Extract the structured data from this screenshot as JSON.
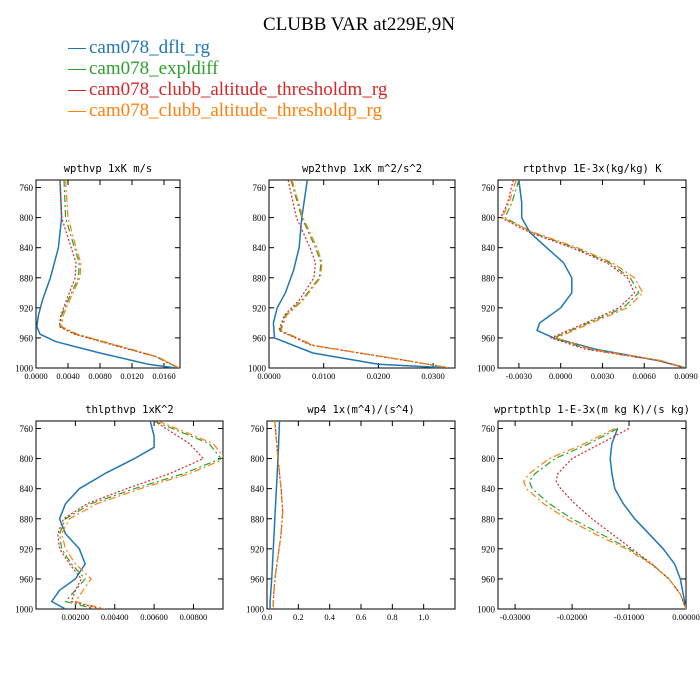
{
  "title": "CLUBB VAR at229E,9N",
  "colors": {
    "dflt": "#1f77b4",
    "expldiff": "#2ca02c",
    "thresholdm": "#d62728",
    "thresholdp": "#ff7f0e"
  },
  "legend": [
    {
      "label": "cam078_dflt_rg",
      "color": "#1f77b4",
      "style": "solid"
    },
    {
      "label": "cam078_expldiff",
      "color": "#2ca02c",
      "style": "dashdot"
    },
    {
      "label": "cam078_clubb_altitude_thresholdm_rg",
      "color": "#d62728",
      "style": "dotted"
    },
    {
      "label": "cam078_clubb_altitude_thresholdp_rg",
      "color": "#ff7f0e",
      "style": "dashdot"
    }
  ],
  "chart_data": [
    {
      "type": "line",
      "title": "wpthvp  1xK m/s",
      "xlim": [
        0.0,
        0.018
      ],
      "xticks": [
        0.0,
        0.004,
        0.008,
        0.012,
        0.016
      ],
      "xtick_labels": [
        "0.0000",
        "0.0040",
        "0.0080",
        "0.0120",
        "0.0160"
      ],
      "ylim": [
        1000,
        750
      ],
      "yticks": [
        760,
        800,
        840,
        880,
        920,
        960,
        1000
      ],
      "ytick_labels": [
        "760",
        "800",
        "840",
        "880",
        "920",
        "960",
        "1000"
      ],
      "series": [
        {
          "name": "cam078_dflt_rg",
          "y": [
            750,
            800,
            840,
            880,
            910,
            930,
            945,
            955,
            965,
            980,
            995,
            1000
          ],
          "x": [
            0.003,
            0.0032,
            0.0028,
            0.0018,
            0.0008,
            0.0003,
            0.0001,
            0.0005,
            0.0025,
            0.008,
            0.014,
            0.0175
          ]
        },
        {
          "name": "cam078_expldiff",
          "y": [
            750,
            800,
            840,
            860,
            880,
            910,
            930,
            945,
            955,
            970,
            985,
            1000
          ],
          "x": [
            0.0035,
            0.0037,
            0.0048,
            0.0054,
            0.0053,
            0.004,
            0.0032,
            0.003,
            0.005,
            0.01,
            0.015,
            0.0178
          ]
        },
        {
          "name": "cam078_clubb_altitude_thresholdm_rg",
          "y": [
            750,
            800,
            840,
            860,
            880,
            910,
            930,
            945,
            955,
            970,
            985,
            1000
          ],
          "x": [
            0.003,
            0.0032,
            0.0044,
            0.005,
            0.0049,
            0.0038,
            0.0031,
            0.0029,
            0.0048,
            0.0098,
            0.015,
            0.0178
          ]
        },
        {
          "name": "cam078_clubb_altitude_thresholdp_rg",
          "y": [
            750,
            800,
            840,
            860,
            880,
            910,
            930,
            945,
            955,
            970,
            985,
            1000
          ],
          "x": [
            0.0037,
            0.004,
            0.005,
            0.0056,
            0.0055,
            0.0042,
            0.0034,
            0.0032,
            0.0052,
            0.0102,
            0.0152,
            0.0179
          ]
        }
      ]
    },
    {
      "type": "line",
      "title": "wp2thvp  1xK m^2/s^2",
      "xlim": [
        0.0,
        0.034
      ],
      "xticks": [
        0.0,
        0.01,
        0.02,
        0.03
      ],
      "xtick_labels": [
        "0.0000",
        "0.0100",
        "0.0200",
        "0.0300"
      ],
      "ylim": [
        1000,
        750
      ],
      "yticks": [
        760,
        800,
        840,
        880,
        920,
        960,
        1000
      ],
      "ytick_labels": [
        "760",
        "800",
        "840",
        "880",
        "920",
        "960",
        "1000"
      ],
      "series": [
        {
          "name": "cam078_dflt_rg",
          "y": [
            750,
            800,
            840,
            870,
            900,
            920,
            940,
            960,
            980,
            995,
            1000
          ],
          "x": [
            0.007,
            0.006,
            0.0055,
            0.0045,
            0.003,
            0.0015,
            0.0008,
            0.001,
            0.008,
            0.02,
            0.033
          ]
        },
        {
          "name": "cam078_expldiff",
          "y": [
            750,
            800,
            840,
            860,
            880,
            910,
            930,
            950,
            970,
            990,
            1000
          ],
          "x": [
            0.004,
            0.006,
            0.0085,
            0.0095,
            0.0092,
            0.006,
            0.003,
            0.002,
            0.008,
            0.025,
            0.033
          ]
        },
        {
          "name": "cam078_clubb_altitude_thresholdm_rg",
          "y": [
            750,
            800,
            840,
            860,
            880,
            910,
            930,
            950,
            970,
            990,
            1000
          ],
          "x": [
            0.0035,
            0.005,
            0.0075,
            0.0085,
            0.0082,
            0.0055,
            0.0028,
            0.0018,
            0.0078,
            0.025,
            0.033
          ]
        },
        {
          "name": "cam078_clubb_altitude_thresholdp_rg",
          "y": [
            750,
            800,
            840,
            860,
            880,
            910,
            930,
            950,
            970,
            990,
            1000
          ],
          "x": [
            0.0042,
            0.0062,
            0.0088,
            0.0097,
            0.0094,
            0.0062,
            0.0032,
            0.0022,
            0.0082,
            0.0252,
            0.033
          ]
        }
      ]
    },
    {
      "type": "line",
      "title": "rtpthvp  1E-3x(kg/kg) K",
      "xlim": [
        -0.0045,
        0.009
      ],
      "xticks": [
        -0.003,
        0.0,
        0.003,
        0.006,
        0.009
      ],
      "xtick_labels": [
        "-0.0030",
        "0.0000",
        "0.0030",
        "0.0060",
        "0.0090"
      ],
      "ylim": [
        1000,
        750
      ],
      "yticks": [
        760,
        800,
        840,
        880,
        920,
        960,
        1000
      ],
      "ytick_labels": [
        "760",
        "800",
        "840",
        "880",
        "920",
        "960",
        "1000"
      ],
      "series": [
        {
          "name": "cam078_dflt_rg",
          "y": [
            750,
            780,
            800,
            820,
            840,
            860,
            880,
            900,
            920,
            940,
            950,
            960,
            975,
            990,
            1000
          ],
          "x": [
            -0.003,
            -0.0028,
            -0.0028,
            -0.0022,
            -0.001,
            0.0002,
            0.0008,
            0.0008,
            0.0,
            -0.0015,
            -0.0017,
            -0.0005,
            0.0025,
            0.007,
            0.009
          ]
        },
        {
          "name": "cam078_expldiff",
          "y": [
            750,
            780,
            800,
            820,
            840,
            860,
            880,
            900,
            920,
            940,
            960,
            975,
            990,
            1000
          ],
          "x": [
            -0.003,
            -0.0035,
            -0.004,
            -0.002,
            0.001,
            0.0035,
            0.005,
            0.0056,
            0.0045,
            0.002,
            -0.0005,
            0.002,
            0.007,
            0.009
          ]
        },
        {
          "name": "cam078_clubb_altitude_thresholdm_rg",
          "y": [
            750,
            780,
            800,
            820,
            840,
            860,
            880,
            900,
            920,
            940,
            960,
            975,
            990,
            1000
          ],
          "x": [
            -0.0034,
            -0.0038,
            -0.0043,
            -0.0022,
            0.0008,
            0.0033,
            0.0048,
            0.0053,
            0.0042,
            0.0018,
            -0.0007,
            0.0018,
            0.007,
            0.009
          ]
        },
        {
          "name": "cam078_clubb_altitude_thresholdp_rg",
          "y": [
            750,
            780,
            800,
            820,
            840,
            860,
            880,
            900,
            920,
            940,
            960,
            975,
            990,
            1000
          ],
          "x": [
            -0.0032,
            -0.0037,
            -0.0042,
            -0.0019,
            0.0012,
            0.0037,
            0.0053,
            0.0059,
            0.0048,
            0.0022,
            -0.0003,
            0.0022,
            0.0072,
            0.009
          ]
        }
      ]
    },
    {
      "type": "line",
      "title": "thlpthvp  1xK^2",
      "xlim": [
        0.0,
        0.0095
      ],
      "xticks": [
        0.002,
        0.004,
        0.006,
        0.008
      ],
      "xtick_labels": [
        "0.00200",
        "0.00400",
        "0.00600",
        "0.00800"
      ],
      "ylim": [
        1000,
        750
      ],
      "yticks": [
        760,
        800,
        840,
        880,
        920,
        960,
        1000
      ],
      "ytick_labels": [
        "760",
        "800",
        "840",
        "880",
        "920",
        "960",
        "1000"
      ],
      "series": [
        {
          "name": "cam078_dflt_rg",
          "y": [
            750,
            770,
            785,
            800,
            820,
            840,
            860,
            880,
            900,
            920,
            940,
            960,
            975,
            990,
            1000
          ],
          "x": [
            0.0058,
            0.006,
            0.006,
            0.005,
            0.0035,
            0.0022,
            0.0015,
            0.0012,
            0.0015,
            0.0022,
            0.0025,
            0.002,
            0.0012,
            0.0008,
            0.0015
          ]
        },
        {
          "name": "cam078_expldiff",
          "y": [
            750,
            780,
            800,
            820,
            840,
            860,
            880,
            900,
            920,
            940,
            960,
            975,
            990,
            1000
          ],
          "x": [
            0.006,
            0.0088,
            0.0094,
            0.0075,
            0.005,
            0.0028,
            0.0015,
            0.0012,
            0.0013,
            0.0018,
            0.0025,
            0.002,
            0.0015,
            0.003
          ]
        },
        {
          "name": "cam078_clubb_altitude_thresholdm_rg",
          "y": [
            750,
            780,
            800,
            820,
            840,
            860,
            880,
            900,
            920,
            940,
            960,
            975,
            990,
            1000
          ],
          "x": [
            0.006,
            0.0078,
            0.0085,
            0.0068,
            0.0046,
            0.0026,
            0.0014,
            0.0011,
            0.0012,
            0.0017,
            0.0023,
            0.002,
            0.0018,
            0.0033
          ]
        },
        {
          "name": "cam078_clubb_altitude_thresholdp_rg",
          "y": [
            750,
            780,
            800,
            820,
            840,
            860,
            880,
            900,
            920,
            940,
            960,
            975,
            990,
            1000
          ],
          "x": [
            0.0062,
            0.009,
            0.0096,
            0.0078,
            0.0053,
            0.0031,
            0.0017,
            0.0013,
            0.0015,
            0.002,
            0.0028,
            0.0024,
            0.002,
            0.0035
          ]
        }
      ]
    },
    {
      "type": "line",
      "title": "wp4  1x(m^4)/(s^4)",
      "xlim": [
        0.0,
        1.2
      ],
      "xticks": [
        0.0,
        0.2,
        0.4,
        0.6,
        0.8,
        1.0
      ],
      "xtick_labels": [
        "0.0",
        "0.2",
        "0.4",
        "0.6",
        "0.8",
        "1.0"
      ],
      "ylim": [
        1000,
        750
      ],
      "yticks": [
        760,
        800,
        840,
        880,
        920,
        960,
        1000
      ],
      "ytick_labels": [
        "760",
        "800",
        "840",
        "880",
        "920",
        "960",
        "1000"
      ],
      "series": [
        {
          "name": "cam078_dflt_rg",
          "y": [
            750,
            800,
            840,
            880,
            920,
            960,
            990,
            1000
          ],
          "x": [
            0.08,
            0.07,
            0.06,
            0.05,
            0.04,
            0.03,
            0.02,
            0.02
          ]
        },
        {
          "name": "cam078_expldiff",
          "y": [
            750,
            800,
            840,
            870,
            900,
            930,
            960,
            990,
            1000
          ],
          "x": [
            0.05,
            0.07,
            0.09,
            0.1,
            0.09,
            0.07,
            0.05,
            0.04,
            0.04
          ]
        },
        {
          "name": "cam078_clubb_altitude_thresholdm_rg",
          "y": [
            750,
            800,
            840,
            870,
            900,
            930,
            960,
            990,
            1000
          ],
          "x": [
            0.05,
            0.07,
            0.09,
            0.1,
            0.09,
            0.07,
            0.05,
            0.04,
            0.04
          ]
        },
        {
          "name": "cam078_clubb_altitude_thresholdp_rg",
          "y": [
            750,
            800,
            840,
            870,
            900,
            930,
            960,
            990,
            1000
          ],
          "x": [
            0.05,
            0.07,
            0.09,
            0.1,
            0.09,
            0.07,
            0.05,
            0.04,
            0.04
          ]
        }
      ]
    },
    {
      "type": "line",
      "title": "wprtpthlp  1-E-3x(m kg K)/(s kg)",
      "xlim": [
        -0.033,
        0.0
      ],
      "xticks": [
        -0.03,
        -0.02,
        -0.01,
        0.0
      ],
      "xtick_labels": [
        "-0.03000",
        "-0.02000",
        "-0.01000",
        "0.00000"
      ],
      "ylim": [
        1000,
        750
      ],
      "yticks": [
        760,
        800,
        840,
        880,
        920,
        960,
        1000
      ],
      "ytick_labels": [
        "760",
        "800",
        "840",
        "880",
        "920",
        "960",
        "1000"
      ],
      "series": [
        {
          "name": "cam078_dflt_rg",
          "y": [
            760,
            780,
            800,
            820,
            840,
            860,
            880,
            900,
            920,
            940,
            960,
            980,
            1000
          ],
          "x": [
            -0.012,
            -0.013,
            -0.0133,
            -0.013,
            -0.0125,
            -0.011,
            -0.009,
            -0.0065,
            -0.004,
            -0.002,
            -0.001,
            -0.0005,
            0.0
          ]
        },
        {
          "name": "cam078_expldiff",
          "y": [
            760,
            780,
            800,
            820,
            830,
            840,
            860,
            880,
            900,
            920,
            940,
            960,
            980,
            1000
          ],
          "x": [
            -0.012,
            -0.017,
            -0.023,
            -0.0265,
            -0.0275,
            -0.027,
            -0.024,
            -0.02,
            -0.015,
            -0.01,
            -0.006,
            -0.003,
            -0.001,
            0.0
          ]
        },
        {
          "name": "cam078_clubb_altitude_thresholdm_rg",
          "y": [
            760,
            780,
            800,
            820,
            830,
            840,
            860,
            880,
            900,
            920,
            940,
            960,
            980,
            1000
          ],
          "x": [
            -0.01,
            -0.015,
            -0.02,
            -0.0225,
            -0.0228,
            -0.022,
            -0.0195,
            -0.0165,
            -0.013,
            -0.0095,
            -0.006,
            -0.003,
            -0.001,
            0.0
          ]
        },
        {
          "name": "cam078_clubb_altitude_thresholdp_rg",
          "y": [
            760,
            780,
            800,
            820,
            830,
            840,
            860,
            880,
            900,
            920,
            940,
            960,
            980,
            1000
          ],
          "x": [
            -0.0125,
            -0.0178,
            -0.024,
            -0.0275,
            -0.0285,
            -0.028,
            -0.025,
            -0.021,
            -0.016,
            -0.0105,
            -0.0062,
            -0.003,
            -0.001,
            0.0
          ]
        }
      ]
    }
  ]
}
